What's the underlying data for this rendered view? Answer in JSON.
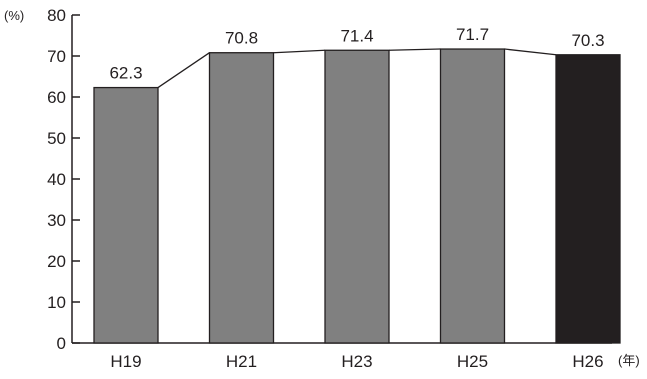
{
  "chart_data": {
    "type": "bar",
    "categories": [
      "H19",
      "H21",
      "H23",
      "H25",
      "H26"
    ],
    "values": [
      62.3,
      70.8,
      71.4,
      71.7,
      70.3
    ],
    "value_labels": [
      "62.3",
      "70.8",
      "71.4",
      "71.7",
      "70.3"
    ],
    "ylim": [
      0,
      80
    ],
    "yticks": [
      0,
      10,
      20,
      30,
      40,
      50,
      60,
      70,
      80
    ],
    "y_unit": "(%)",
    "x_unit": "(年)",
    "title": "",
    "xlabel": "",
    "ylabel": "",
    "grid": false,
    "legend": "none",
    "connector_line": true,
    "colors": {
      "bar": "#808080",
      "highlight_bar": "#231f20",
      "stroke": "#231f20",
      "axis": "#231f20"
    },
    "highlight_index": 4
  }
}
